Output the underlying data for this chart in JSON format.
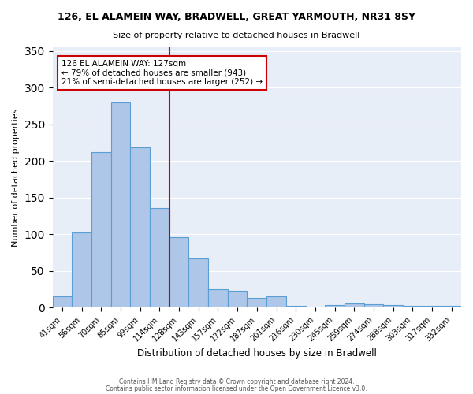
{
  "title_line1": "126, EL ALAMEIN WAY, BRADWELL, GREAT YARMOUTH, NR31 8SY",
  "title_line2": "Size of property relative to detached houses in Bradwell",
  "xlabel": "Distribution of detached houses by size in Bradwell",
  "ylabel": "Number of detached properties",
  "bin_labels": [
    "41sqm",
    "56sqm",
    "70sqm",
    "85sqm",
    "99sqm",
    "114sqm",
    "128sqm",
    "143sqm",
    "157sqm",
    "172sqm",
    "187sqm",
    "201sqm",
    "216sqm",
    "230sqm",
    "245sqm",
    "259sqm",
    "274sqm",
    "288sqm",
    "303sqm",
    "317sqm",
    "332sqm"
  ],
  "bar_heights": [
    15,
    103,
    212,
    280,
    219,
    136,
    96,
    67,
    25,
    23,
    13,
    15,
    3,
    0,
    4,
    6,
    5,
    4,
    3,
    3,
    3
  ],
  "bar_color": "#aec6e8",
  "bar_edge_color": "#5a9fd4",
  "vline_x": 6.0,
  "vline_color": "#cc0000",
  "annotation_text": "126 EL ALAMEIN WAY: 127sqm\n← 79% of detached houses are smaller (943)\n21% of semi-detached houses are larger (252) →",
  "annotation_box_color": "#ffffff",
  "annotation_box_edge_color": "#cc0000",
  "ylim": [
    0,
    355
  ],
  "yticks": [
    0,
    50,
    100,
    150,
    200,
    250,
    300,
    350
  ],
  "bg_color": "#e8eef8",
  "footer_line1": "Contains HM Land Registry data © Crown copyright and database right 2024.",
  "footer_line2": "Contains public sector information licensed under the Open Government Licence v3.0."
}
